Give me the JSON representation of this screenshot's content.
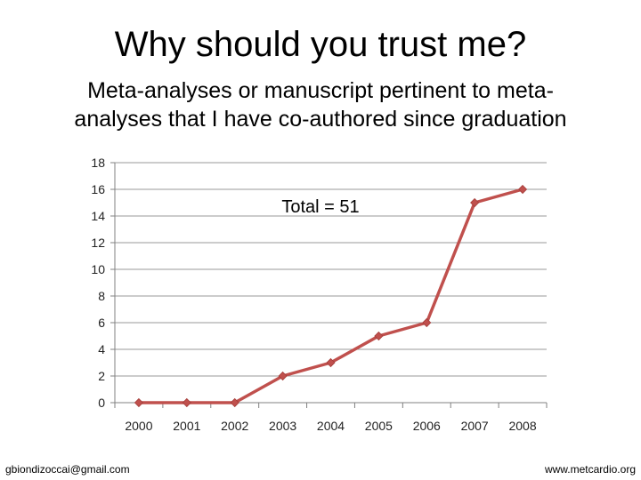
{
  "slide": {
    "title": "Why should you trust me?",
    "subtitle_line1": "Meta-analyses or manuscript pertinent to meta-",
    "subtitle_line2": "analyses that I have co-authored since graduation",
    "annotation": "Total = 51",
    "footer_left": "gbiondizoccai@gmail.com",
    "footer_right": "www.metcardio.org"
  },
  "chart_data": {
    "type": "line",
    "title": "",
    "xlabel": "",
    "ylabel": "",
    "categories": [
      "2000",
      "2001",
      "2002",
      "2003",
      "2004",
      "2005",
      "2006",
      "2007",
      "2008"
    ],
    "series": [
      {
        "values": [
          0,
          0,
          0,
          2,
          3,
          5,
          6,
          15,
          16
        ],
        "color": "#c0504d"
      }
    ],
    "ylim": [
      0,
      18
    ],
    "yticks": [
      0,
      2,
      4,
      6,
      8,
      10,
      12,
      14,
      16,
      18
    ],
    "grid": true,
    "legend": "none"
  }
}
